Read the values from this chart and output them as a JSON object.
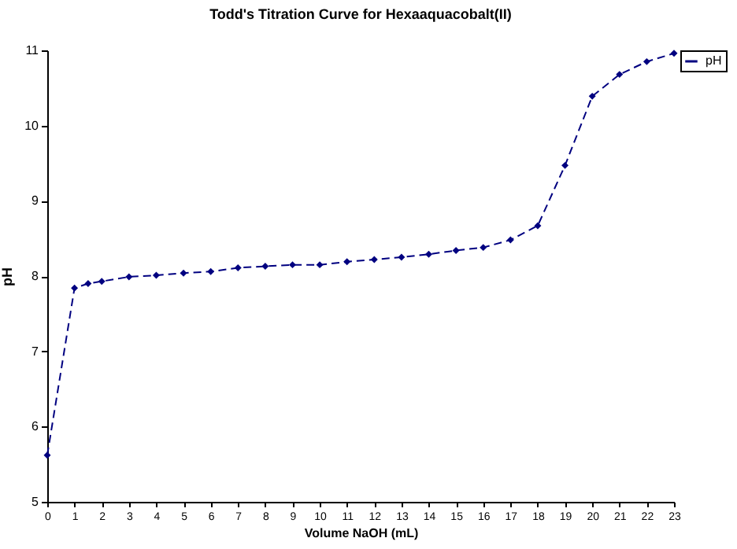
{
  "chart_data": {
    "type": "line",
    "title": "Todd's Titration Curve for Hexaaquacobalt(II)",
    "xlabel": "Volume NaOH (mL)",
    "ylabel": "pH",
    "x": [
      0,
      1,
      1.5,
      2,
      3,
      4,
      5,
      6,
      7,
      8,
      9,
      10,
      11,
      12,
      13,
      14,
      15,
      16,
      17,
      18,
      19,
      20,
      21,
      22,
      23
    ],
    "series": [
      {
        "name": "pH",
        "color": "#000080",
        "values": [
          5.62,
          7.84,
          7.9,
          7.93,
          7.99,
          8.01,
          8.04,
          8.06,
          8.11,
          8.13,
          8.15,
          8.15,
          8.19,
          8.22,
          8.25,
          8.29,
          8.34,
          8.38,
          8.48,
          8.67,
          9.47,
          10.39,
          10.68,
          10.85,
          10.96
        ]
      }
    ],
    "xlim": [
      0,
      23
    ],
    "xticks": [
      0,
      1,
      2,
      3,
      4,
      5,
      6,
      7,
      8,
      9,
      10,
      11,
      12,
      13,
      14,
      15,
      16,
      17,
      18,
      19,
      20,
      21,
      22,
      23
    ],
    "ylim": [
      5,
      11
    ],
    "yticks": [
      5,
      6,
      7,
      8,
      9,
      10,
      11
    ],
    "legend": "right",
    "marker": "diamond",
    "line_style": "dashed"
  }
}
